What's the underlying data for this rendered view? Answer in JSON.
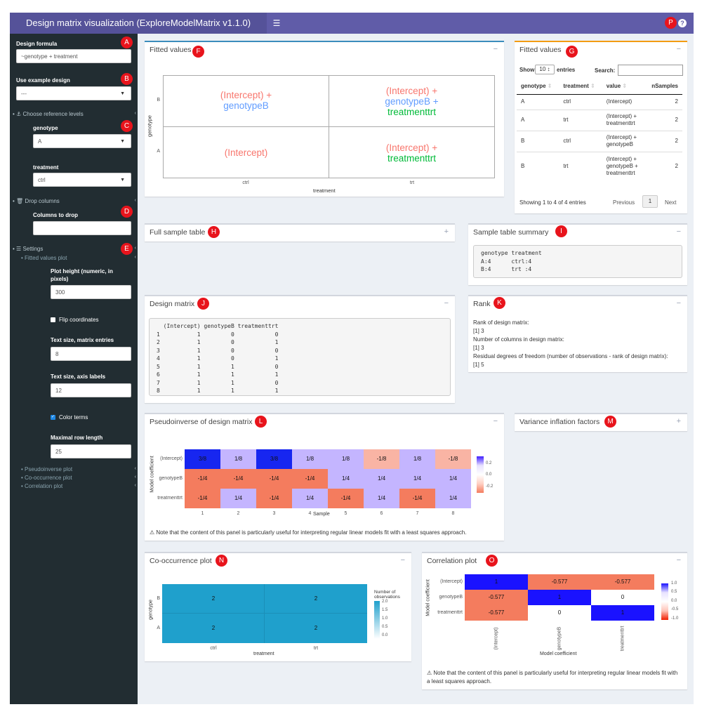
{
  "header": {
    "title": "Design matrix visualization (ExploreModelMatrix v1.1.0)",
    "toggle_icon": "hamburger-icon",
    "help_icon": "question-circle-icon"
  },
  "sidebar": {
    "design_formula_label": "Design formula",
    "design_formula_value": "~genotype + treatment",
    "example_design_label": "Use example design",
    "example_design_value": "---",
    "ref_levels_label": "Choose reference levels",
    "genotype_label": "genotype",
    "genotype_value": "A",
    "treatment_label": "treatment",
    "treatment_value": "ctrl",
    "drop_columns_label": "Drop columns",
    "columns_to_drop_label": "Columns to drop",
    "columns_to_drop_value": "",
    "settings_label": "Settings",
    "fitted_values_plot_label": "Fitted values plot",
    "plot_height_label": "Plot height (numeric, in pixels)",
    "plot_height_value": "300",
    "flip_coordinates_label": "Flip coordinates",
    "flip_coordinates_checked": false,
    "text_size_matrix_label": "Text size, matrix entries",
    "text_size_matrix_value": "8",
    "text_size_axis_label": "Text size, axis labels",
    "text_size_axis_value": "12",
    "color_terms_label": "Color terms",
    "color_terms_checked": true,
    "max_row_length_label": "Maximal row length",
    "max_row_length_value": "25",
    "pseudoinverse_plot_label": "Pseudoinverse plot",
    "cooccurrence_plot_label": "Co-occurrence plot",
    "correlation_plot_label": "Correlation plot"
  },
  "badges": [
    "A",
    "B",
    "C",
    "D",
    "E",
    "F",
    "G",
    "H",
    "I",
    "J",
    "K",
    "L",
    "M",
    "N",
    "O",
    "P"
  ],
  "fitted_values_plot": {
    "title": "Fitted values",
    "x_label": "treatment",
    "y_label": "genotype",
    "x_ticks": [
      "ctrl",
      "trt"
    ],
    "y_ticks": [
      "B",
      "A"
    ],
    "cells": [
      {
        "row": "B",
        "col": "ctrl",
        "terms": [
          {
            "text": "(Intercept) +",
            "color": "#f8766d"
          },
          {
            "text": "genotypeB",
            "color": "#619cff"
          }
        ]
      },
      {
        "row": "B",
        "col": "trt",
        "terms": [
          {
            "text": "(Intercept) +",
            "color": "#f8766d"
          },
          {
            "text": "genotypeB +",
            "color": "#619cff"
          },
          {
            "text": "treatmenttrt",
            "color": "#00ba38"
          }
        ]
      },
      {
        "row": "A",
        "col": "ctrl",
        "terms": [
          {
            "text": "(Intercept)",
            "color": "#f8766d"
          }
        ]
      },
      {
        "row": "A",
        "col": "trt",
        "terms": [
          {
            "text": "(Intercept) +",
            "color": "#f8766d"
          },
          {
            "text": "treatmenttrt",
            "color": "#00ba38"
          }
        ]
      }
    ]
  },
  "fitted_values_table": {
    "title": "Fitted values",
    "show_label": "Show",
    "show_value": "10",
    "entries_label": "entries",
    "search_label": "Search:",
    "search_value": "",
    "columns": [
      "genotype",
      "treatment",
      "value",
      "nSamples"
    ],
    "rows": [
      {
        "genotype": "A",
        "treatment": "ctrl",
        "value": "(Intercept)",
        "nSamples": "2"
      },
      {
        "genotype": "A",
        "treatment": "trt",
        "value": "(Intercept) +\ntreatmenttrt",
        "nSamples": "2"
      },
      {
        "genotype": "B",
        "treatment": "ctrl",
        "value": "(Intercept) +\ngenotypeB",
        "nSamples": "2"
      },
      {
        "genotype": "B",
        "treatment": "trt",
        "value": "(Intercept) +\ngenotypeB +\ntreatmenttrt",
        "nSamples": "2"
      }
    ],
    "info": "Showing 1 to 4 of 4 entries",
    "previous_label": "Previous",
    "page_label": "1",
    "next_label": "Next"
  },
  "full_sample_table": {
    "title": "Full sample table"
  },
  "sample_table_summary": {
    "title": "Sample table summary",
    "text": "genotype treatment\nA:4      ctrl:4\nB:4      trt :4"
  },
  "design_matrix": {
    "title": "Design matrix",
    "text": "  (Intercept) genotypeB treatmenttrt\n1           1         0            0\n2           1         0            1\n3           1         0            0\n4           1         0            1\n5           1         1            0\n6           1         1            1\n7           1         1            0\n8           1         1            1"
  },
  "rank": {
    "title": "Rank",
    "lines": [
      "Rank of design matrix:",
      "[1] 3",
      "Number of columns in design matrix:",
      "[1] 3",
      "Residual degrees of freedom (number of observations - rank of design matrix):",
      "[1] 5"
    ]
  },
  "pseudoinverse": {
    "title": "Pseudoinverse of design matrix",
    "note": "Note that the content of this panel is particularly useful for interpreting regular linear models fit with a least squares approach.",
    "legend_ticks": [
      "0.2",
      "0.0",
      "-0.2"
    ]
  },
  "variance_inflation": {
    "title": "Variance inflation factors"
  },
  "cooccurrence": {
    "title": "Co-occurrence plot",
    "legend_title": "Number of\nobservations",
    "legend_ticks": [
      "2.0",
      "1.5",
      "1.0",
      "0.5",
      "0.0"
    ],
    "fill_color": "#1fa0cc"
  },
  "correlation": {
    "title": "Correlation plot",
    "note": "Note that the content of this panel is particularly useful for interpreting regular linear models fit with a least squares approach.",
    "legend_ticks": [
      "1.0",
      "0.5",
      "0.0",
      "-0.5",
      "-1.0"
    ]
  },
  "chart_data": [
    {
      "type": "heatmap",
      "title": "Pseudoinverse of design matrix",
      "xlabel": "Sample",
      "ylabel": "Model coefficient",
      "x": [
        "1",
        "2",
        "3",
        "4",
        "5",
        "6",
        "7",
        "8"
      ],
      "y": [
        "(Intercept)",
        "genotypeB",
        "treatmenttrt"
      ],
      "values": [
        [
          0.375,
          0.125,
          0.375,
          0.125,
          0.125,
          -0.125,
          0.125,
          -0.125
        ],
        [
          -0.25,
          -0.25,
          -0.25,
          -0.25,
          0.25,
          0.25,
          0.25,
          0.25
        ],
        [
          -0.25,
          0.25,
          -0.25,
          0.25,
          -0.25,
          0.25,
          -0.25,
          0.25
        ]
      ],
      "labels": [
        [
          "3/8",
          "1/8",
          "3/8",
          "1/8",
          "1/8",
          "-1/8",
          "1/8",
          "-1/8"
        ],
        [
          "-1/4",
          "-1/4",
          "-1/4",
          "-1/4",
          "1/4",
          "1/4",
          "1/4",
          "1/4"
        ],
        [
          "-1/4",
          "1/4",
          "-1/4",
          "1/4",
          "-1/4",
          "1/4",
          "-1/4",
          "1/4"
        ]
      ],
      "legend_ticks": [
        0.2,
        0.0,
        -0.2
      ]
    },
    {
      "type": "heatmap",
      "title": "Co-occurrence plot",
      "xlabel": "treatment",
      "ylabel": "genotype",
      "x": [
        "ctrl",
        "trt"
      ],
      "y": [
        "B",
        "A"
      ],
      "values": [
        [
          2,
          2
        ],
        [
          2,
          2
        ]
      ],
      "legend_title": "Number of observations",
      "legend_range": [
        0,
        2
      ]
    },
    {
      "type": "heatmap",
      "title": "Correlation plot",
      "xlabel": "Model coefficient",
      "ylabel": "Model coefficient",
      "x": [
        "(Intercept)",
        "genotypeB",
        "treatmenttrt"
      ],
      "y": [
        "(Intercept)",
        "genotypeB",
        "treatmenttrt"
      ],
      "values": [
        [
          1,
          -0.577,
          -0.577
        ],
        [
          -0.577,
          1,
          0
        ],
        [
          -0.577,
          0,
          1
        ]
      ],
      "labels": [
        [
          "1",
          "-0.577",
          "-0.577"
        ],
        [
          "-0.577",
          "1",
          "0"
        ],
        [
          "-0.577",
          "0",
          "1"
        ]
      ],
      "legend_range": [
        -1,
        1
      ]
    }
  ]
}
